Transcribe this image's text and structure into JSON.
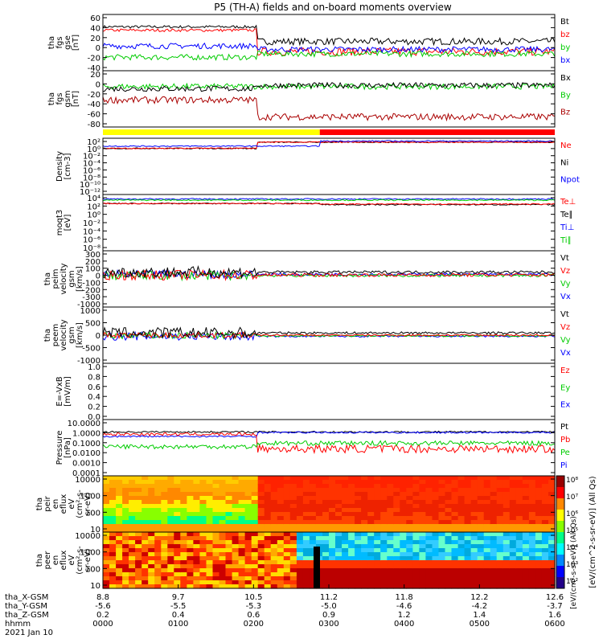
{
  "title": "P5 (TH-A) fields and on-board moments overview",
  "chart_data": {
    "type": "line",
    "title": "P5 (TH-A) fields and on-board moments overview",
    "panels": [
      {
        "id": "fgs_gse",
        "ylabel": [
          "tha",
          "fgs",
          "gse",
          "[nT]"
        ],
        "yticks": [
          "60",
          "40",
          "20",
          "0",
          "-20",
          "-40"
        ],
        "yscale": "linear",
        "ylim": [
          -40,
          65
        ],
        "legend": [
          {
            "name": "Bt",
            "color": "#000000"
          },
          {
            "name": "bz",
            "color": "#ff0000"
          },
          {
            "name": "by",
            "color": "#00cc00"
          },
          {
            "name": "bx",
            "color": "#0000ff"
          }
        ]
      },
      {
        "id": "fgs_gsm",
        "ylabel": [
          "tha",
          "fgs",
          "gsm",
          "[nT]"
        ],
        "yticks": [
          "20",
          "0",
          "-20",
          "-40",
          "-60",
          "-80"
        ],
        "yscale": "linear",
        "ylim": [
          -90,
          30
        ],
        "legend": [
          {
            "name": "Bx",
            "color": "#000000"
          },
          {
            "name": "By",
            "color": "#00cc00"
          },
          {
            "name": "Bz",
            "color": "#aa0000"
          }
        ]
      },
      {
        "id": "density",
        "ylabel": [
          "Density",
          "[cm-3]"
        ],
        "yticks": [
          "10²",
          "10⁰",
          "10⁻²",
          "10⁻⁴",
          "10⁻⁶",
          "10⁻⁸",
          "10⁻¹⁰",
          "10⁻¹²"
        ],
        "yscale": "log",
        "legend": [
          {
            "name": "Ne",
            "color": "#ff0000"
          },
          {
            "name": "Ni",
            "color": "#000000"
          },
          {
            "name": "Npot",
            "color": "#0000ff"
          }
        ]
      },
      {
        "id": "temp",
        "ylabel": [
          "moqt3",
          "[eV]"
        ],
        "yticks": [
          "10⁴",
          "10²",
          "10⁰",
          "10⁻²",
          "10⁻⁴",
          "10⁻⁶",
          "10⁻⁸"
        ],
        "yscale": "log",
        "legend": [
          {
            "name": "Te⊥",
            "color": "#ff0000"
          },
          {
            "name": "Te∥",
            "color": "#000000"
          },
          {
            "name": "Ti⊥",
            "color": "#0000ff"
          },
          {
            "name": "Ti∥",
            "color": "#00cc00"
          }
        ]
      },
      {
        "id": "peim_vel",
        "ylabel": [
          "tha",
          "peim",
          "velocity",
          "gsm",
          "[km/s]"
        ],
        "yticks": [
          "300",
          "200",
          "100",
          "0",
          "-100",
          "-200",
          "-300",
          "-1000"
        ],
        "yscale": "linear",
        "legend": [
          {
            "name": "Vt",
            "color": "#000000"
          },
          {
            "name": "Vz",
            "color": "#ff0000"
          },
          {
            "name": "Vy",
            "color": "#00cc00"
          },
          {
            "name": "Vx",
            "color": "#0000ff"
          }
        ]
      },
      {
        "id": "peem_vel",
        "ylabel": [
          "tha",
          "peem",
          "velocity",
          "gsm",
          "[km/s]"
        ],
        "yticks": [
          "1000",
          "500",
          "0",
          "-500",
          "-1000"
        ],
        "yscale": "linear",
        "ylim": [
          -1000,
          1000
        ],
        "legend": [
          {
            "name": "Vt",
            "color": "#000000"
          },
          {
            "name": "Vz",
            "color": "#ff0000"
          },
          {
            "name": "Vy",
            "color": "#00cc00"
          },
          {
            "name": "Vx",
            "color": "#0000ff"
          }
        ]
      },
      {
        "id": "efield",
        "ylabel": [
          "E=-VxB",
          "[mV/m]"
        ],
        "yticks": [
          "1.0",
          "0.8",
          "0.6",
          "0.4",
          "0.2",
          "0.0"
        ],
        "yscale": "linear",
        "ylim": [
          0.0,
          1.0
        ],
        "legend": [
          {
            "name": "Ez",
            "color": "#ff0000"
          },
          {
            "name": "Ey",
            "color": "#00cc00"
          },
          {
            "name": "Ex",
            "color": "#0000ff"
          }
        ]
      },
      {
        "id": "pressure",
        "ylabel": [
          "Pressure",
          "[nPa]"
        ],
        "yticks": [
          "10.0000",
          "1.0000",
          "0.1000",
          "0.0100",
          "0.0010",
          "0.0001"
        ],
        "yscale": "log",
        "ylim": [
          0.0001,
          10
        ],
        "legend": [
          {
            "name": "Pt",
            "color": "#000000"
          },
          {
            "name": "Pb",
            "color": "#ff0000"
          },
          {
            "name": "Pe",
            "color": "#00cc00"
          },
          {
            "name": "Pi",
            "color": "#0000ff"
          }
        ]
      },
      {
        "id": "peir_flux",
        "ylabel": [
          "tha",
          "peir",
          "en",
          "eflux",
          "eV",
          "(cm²-s-",
          "sr-eV)"
        ],
        "yticks": [
          "10000",
          "1000",
          "100",
          "10"
        ],
        "yscale": "log",
        "type": "heatmap"
      },
      {
        "id": "peer_flux",
        "ylabel": [
          "tha",
          "peer",
          "en",
          "eflux",
          "eV",
          "(cm²-s-",
          "sr-eV)"
        ],
        "yticks": [
          "10000",
          "1000",
          "100",
          "10"
        ],
        "yscale": "log",
        "type": "heatmap"
      }
    ],
    "colorbar": {
      "ticks": [
        "10⁸",
        "10⁷",
        "10⁶",
        "10⁵",
        "10⁴",
        "10³",
        "10²"
      ],
      "label": "[eV/(cm^2-s-sr-eV)] (All Qs)",
      "overlap_label": "[eV/(cm²-s-sr-eV)] (All Qs)"
    },
    "mode_bar": [
      {
        "from": 0,
        "to": 0.48,
        "color": "#ffff00"
      },
      {
        "from": 0.48,
        "to": 1.0,
        "color": "#ff0000"
      }
    ],
    "xaxis": {
      "row_labels": [
        "tha_X-GSM",
        "tha_Y-GSM",
        "tha_Z-GSM",
        "hhmm",
        "2021 Jan 10"
      ],
      "ticks": [
        {
          "x": "8.8",
          "y": "-5.6",
          "z": "0.2",
          "t": "0000"
        },
        {
          "x": "9.7",
          "y": "-5.5",
          "z": "0.4",
          "t": "0100"
        },
        {
          "x": "10.5",
          "y": "-5.3",
          "z": "0.6",
          "t": "0200"
        },
        {
          "x": "11.2",
          "y": "-5.0",
          "z": "0.9",
          "t": "0300"
        },
        {
          "x": "11.8",
          "y": "-4.6",
          "z": "1.2",
          "t": "0400"
        },
        {
          "x": "12.2",
          "y": "-4.2",
          "z": "1.4",
          "t": "0500"
        },
        {
          "x": "12.6",
          "y": "-3.7",
          "z": "1.6",
          "t": "0600"
        }
      ]
    }
  }
}
